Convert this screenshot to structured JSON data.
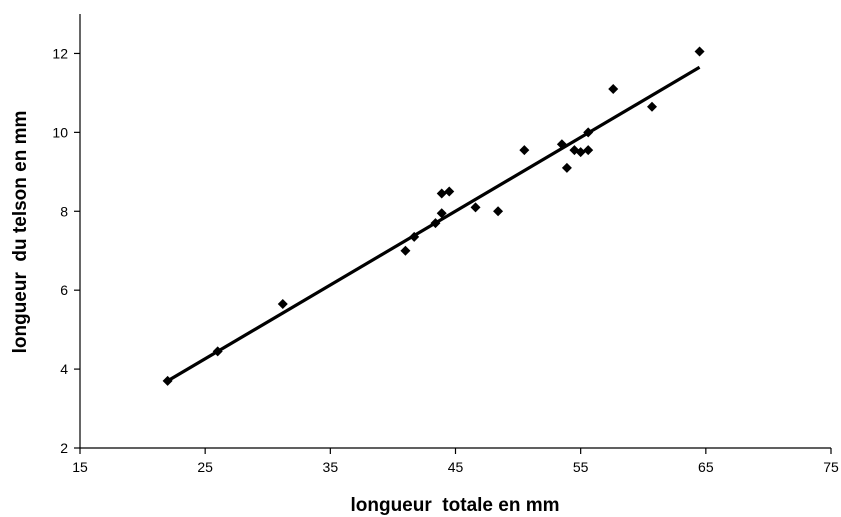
{
  "chart_data": {
    "type": "scatter",
    "title": "",
    "xlabel": "longueur  totale en mm",
    "ylabel": "longueur  du telson en mm",
    "xlim": [
      15,
      75
    ],
    "ylim": [
      2,
      13
    ],
    "xticks": [
      15,
      25,
      35,
      45,
      55,
      65,
      75
    ],
    "yticks": [
      2,
      4,
      6,
      8,
      10,
      12
    ],
    "grid": false,
    "legend": "none",
    "marker": "diamond",
    "colors": {
      "points": "#000000",
      "trendline": "#000000",
      "axis": "#000000"
    },
    "series": [
      {
        "points": [
          [
            22.0,
            3.7
          ],
          [
            26.0,
            4.45
          ],
          [
            31.2,
            5.65
          ],
          [
            41.0,
            7.0
          ],
          [
            41.7,
            7.35
          ],
          [
            43.4,
            7.7
          ],
          [
            43.9,
            7.95
          ],
          [
            43.9,
            8.45
          ],
          [
            44.5,
            8.5
          ],
          [
            46.6,
            8.1
          ],
          [
            48.4,
            8.0
          ],
          [
            50.5,
            9.55
          ],
          [
            53.5,
            9.7
          ],
          [
            53.9,
            9.1
          ],
          [
            54.5,
            9.55
          ],
          [
            55.0,
            9.5
          ],
          [
            55.6,
            9.55
          ],
          [
            55.6,
            10.0
          ],
          [
            57.6,
            11.1
          ],
          [
            60.7,
            10.65
          ],
          [
            64.5,
            12.05
          ]
        ]
      }
    ],
    "trendline": {
      "type": "linear",
      "x_range": [
        22.0,
        64.5
      ],
      "y_values": [
        3.7,
        11.65
      ]
    }
  }
}
